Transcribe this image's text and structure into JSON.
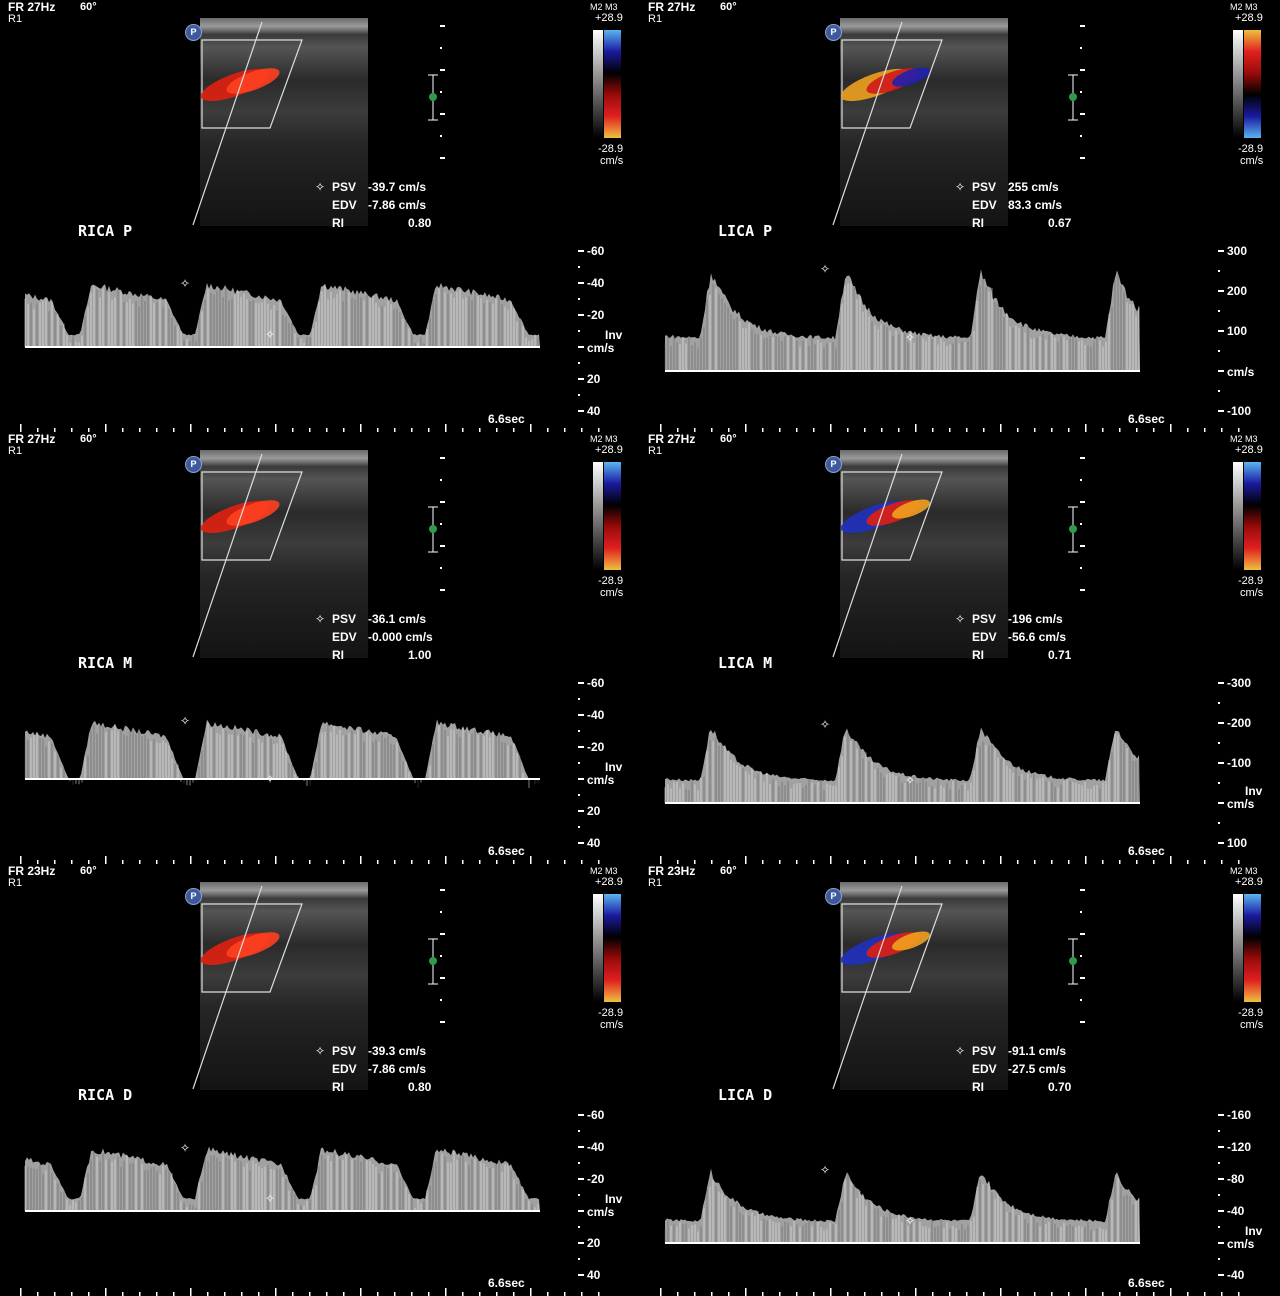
{
  "panels": [
    {
      "name": "rica-p",
      "header": "FR 27Hz",
      "angle": "60°",
      "r": "R1",
      "cb_label": "M2 M3",
      "cb_max": "+28.9",
      "cb_min": "-28.9",
      "cb_unit": "cm/s",
      "label": "RICA P",
      "psv_label": "PSV",
      "psv": "-39.7 cm/s",
      "edv_label": "EDV",
      "edv": "-7.86 cm/s",
      "ri_label": "RI",
      "ri": "0.80",
      "ticks": [
        "-60",
        "-40",
        "-20",
        "cm/s",
        "20",
        "40"
      ],
      "inv": "Inv",
      "sweep": "6.6sec",
      "colorbar_colors": [
        "#5ab4f0",
        "#1a1aa0",
        "#000000",
        "#9a0a0a",
        "#e02020",
        "#f0c040"
      ],
      "flow_colors": [
        "#e02010",
        "#ff4020"
      ],
      "waveform": "sustained"
    },
    {
      "name": "lica-p",
      "header": "FR 27Hz",
      "angle": "60°",
      "r": "R1",
      "cb_label": "M2 M3",
      "cb_max": "+28.9",
      "cb_min": "-28.9",
      "cb_unit": "cm/s",
      "label": "LICA P",
      "psv_label": "PSV",
      "psv": "255 cm/s",
      "edv_label": "EDV",
      "edv": "83.3 cm/s",
      "ri_label": "RI",
      "ri": "0.67",
      "ticks": [
        "300",
        "200",
        "100",
        "cm/s",
        "-100"
      ],
      "inv": "",
      "sweep": "6.6sec",
      "colorbar_colors": [
        "#f0c040",
        "#e02020",
        "#9a0a0a",
        "#000000",
        "#1a1aa0",
        "#5ab4f0"
      ],
      "flow_colors": [
        "#f0a020",
        "#d01818",
        "#2020b0"
      ],
      "waveform": "spiky"
    },
    {
      "name": "rica-m",
      "header": "FR 27Hz",
      "angle": "60°",
      "r": "R1",
      "cb_label": "M2 M3",
      "cb_max": "+28.9",
      "cb_min": "-28.9",
      "cb_unit": "cm/s",
      "label": "RICA M",
      "psv_label": "PSV",
      "psv": "-36.1 cm/s",
      "edv_label": "EDV",
      "edv": "-0.000 cm/s",
      "ri_label": "RI",
      "ri": "1.00",
      "ticks": [
        "-60",
        "-40",
        "-20",
        "cm/s",
        "20",
        "40"
      ],
      "inv": "Inv",
      "sweep": "6.6sec",
      "colorbar_colors": [
        "#5ab4f0",
        "#1a1aa0",
        "#000000",
        "#9a0a0a",
        "#e02020",
        "#f0c040"
      ],
      "flow_colors": [
        "#e02010",
        "#ff4020"
      ],
      "waveform": "sustained"
    },
    {
      "name": "lica-m",
      "header": "FR 27Hz",
      "angle": "60°",
      "r": "R1",
      "cb_label": "M2 M3",
      "cb_max": "+28.9",
      "cb_min": "-28.9",
      "cb_unit": "cm/s",
      "label": "LICA M",
      "psv_label": "PSV",
      "psv": "-196 cm/s",
      "edv_label": "EDV",
      "edv": "-56.6 cm/s",
      "ri_label": "RI",
      "ri": "0.71",
      "ticks": [
        "-300",
        "-200",
        "-100",
        "cm/s",
        "100"
      ],
      "inv": "Inv",
      "sweep": "6.6sec",
      "colorbar_colors": [
        "#5ab4f0",
        "#1a1aa0",
        "#000000",
        "#9a0a0a",
        "#e02020",
        "#f0c040"
      ],
      "flow_colors": [
        "#2030c0",
        "#e02010",
        "#f0a020"
      ],
      "waveform": "spiky"
    },
    {
      "name": "rica-d",
      "header": "FR 23Hz",
      "angle": "60°",
      "r": "R1",
      "cb_label": "M2 M3",
      "cb_max": "+28.9",
      "cb_min": "-28.9",
      "cb_unit": "cm/s",
      "label": "RICA D",
      "psv_label": "PSV",
      "psv": "-39.3 cm/s",
      "edv_label": "EDV",
      "edv": "-7.86 cm/s",
      "ri_label": "RI",
      "ri": "0.80",
      "ticks": [
        "-60",
        "-40",
        "-20",
        "cm/s",
        "20",
        "40"
      ],
      "inv": "Inv",
      "sweep": "6.6sec",
      "colorbar_colors": [
        "#5ab4f0",
        "#1a1aa0",
        "#000000",
        "#9a0a0a",
        "#e02020",
        "#f0c040"
      ],
      "flow_colors": [
        "#e02010",
        "#ff4020"
      ],
      "waveform": "sustained"
    },
    {
      "name": "lica-d",
      "header": "FR 23Hz",
      "angle": "60°",
      "r": "R1",
      "cb_label": "M2 M3",
      "cb_max": "+28.9",
      "cb_min": "-28.9",
      "cb_unit": "cm/s",
      "label": "LICA D",
      "psv_label": "PSV",
      "psv": "-91.1 cm/s",
      "edv_label": "EDV",
      "edv": "-27.5 cm/s",
      "ri_label": "RI",
      "ri": "0.70",
      "ticks": [
        "-160",
        "-120",
        "-80",
        "-40",
        "cm/s",
        "-40"
      ],
      "inv": "Inv",
      "sweep": "6.6sec",
      "colorbar_colors": [
        "#5ab4f0",
        "#1a1aa0",
        "#000000",
        "#9a0a0a",
        "#e02020",
        "#f0c040"
      ],
      "flow_colors": [
        "#2030c0",
        "#e02010",
        "#f0a020"
      ],
      "waveform": "spiky"
    }
  ]
}
